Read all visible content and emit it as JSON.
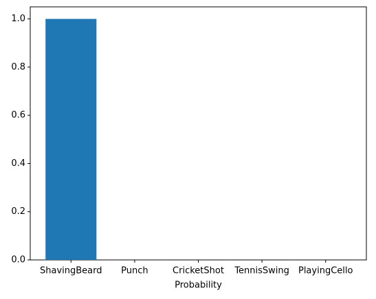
{
  "chart_data": {
    "type": "bar",
    "x_label": "Probability",
    "categories": [
      "ShavingBeard",
      "Punch",
      "CricketShot",
      "TennisSwing",
      "PlayingCello"
    ],
    "values": [
      1.0,
      0,
      0,
      0,
      0
    ],
    "color": "#1f77b4",
    "ylim": [
      0,
      1.05
    ],
    "yticks": [
      {
        "value": 0,
        "label": "0.0"
      },
      {
        "value": 0.2,
        "label": "0.2"
      },
      {
        "value": 0.4,
        "label": "0.4"
      },
      {
        "value": 0.6,
        "label": "0.6"
      },
      {
        "value": 0.8,
        "label": "0.8"
      },
      {
        "value": 1.0,
        "label": "1.0"
      }
    ]
  }
}
